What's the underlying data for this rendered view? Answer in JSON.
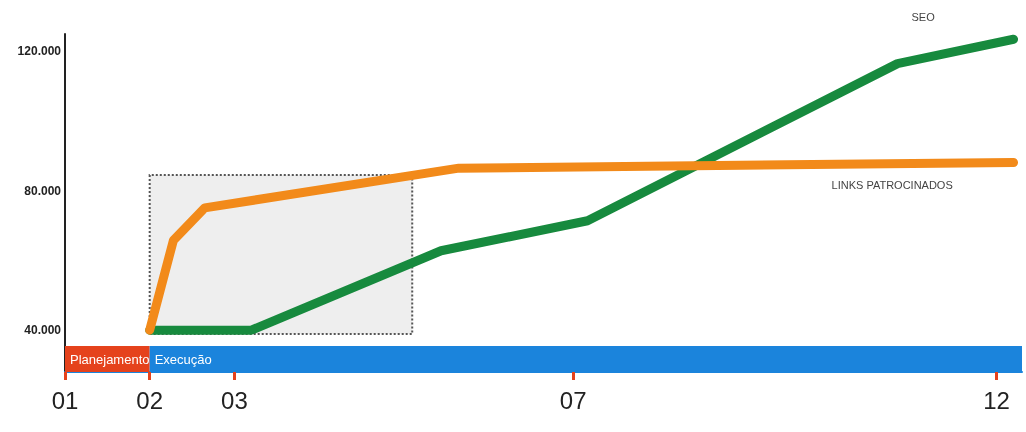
{
  "chart_data": {
    "type": "line",
    "series": [
      {
        "name": "SEO",
        "color": "#178a3e",
        "x": [
          2,
          3.2,
          5.44,
          7.17,
          10.83,
          12.2
        ],
        "values": [
          40000,
          40000,
          62800,
          71400,
          116500,
          123500
        ]
      },
      {
        "name": "LINKS PATROCINADOS",
        "color": "#f28a1a",
        "x": [
          2,
          2.28,
          2.65,
          5.65,
          12.2
        ],
        "values": [
          40000,
          65800,
          75100,
          86500,
          88100
        ]
      }
    ],
    "xlim": [
      1,
      12.3
    ],
    "xticks": [
      {
        "value": 1,
        "label": "01"
      },
      {
        "value": 2,
        "label": "02"
      },
      {
        "value": 3,
        "label": "03"
      },
      {
        "value": 7,
        "label": "07"
      },
      {
        "value": 12,
        "label": "12"
      }
    ],
    "ylim": [
      28000,
      125000
    ],
    "yticks": [
      {
        "value": 40000,
        "label": "40.000"
      },
      {
        "value": 80000,
        "label": "80.000"
      },
      {
        "value": 120000,
        "label": "120.000"
      }
    ],
    "bands": [
      {
        "axis": "x",
        "from": 2,
        "to": 5.1,
        "color": "#eeeeee"
      },
      {
        "axis": "x",
        "from": 1,
        "to": 2,
        "label": "Planejamento",
        "color": "#e5421c"
      },
      {
        "axis": "x",
        "from": 2,
        "to": 12.3,
        "label": "Execução",
        "color": "#1b84dc"
      }
    ],
    "grid": false,
    "legend": false
  }
}
